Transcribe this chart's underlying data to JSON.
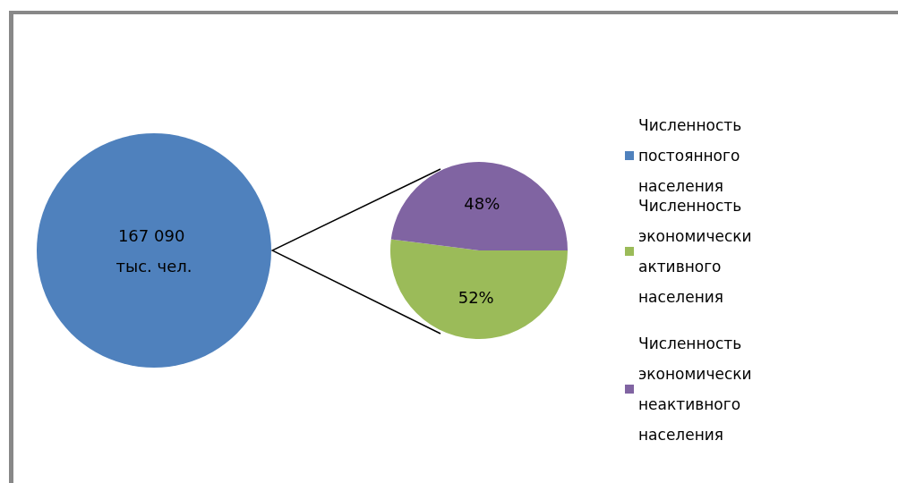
{
  "chart_data": [
    {
      "type": "pie",
      "categories": [
        "Численность постоянного населения"
      ],
      "values": [
        167090
      ],
      "value_labels": [
        "167 090 тыс. чел."
      ],
      "colors": [
        "#4f81bd"
      ],
      "legend": "right"
    },
    {
      "type": "pie",
      "categories": [
        "Численность экономически активного населения",
        "Численность экономически неактивного населения"
      ],
      "values": [
        52,
        48
      ],
      "value_labels": [
        "52%",
        "48%"
      ],
      "colors": [
        "#9bbb59",
        "#8064a2"
      ],
      "legend": "right"
    }
  ]
}
